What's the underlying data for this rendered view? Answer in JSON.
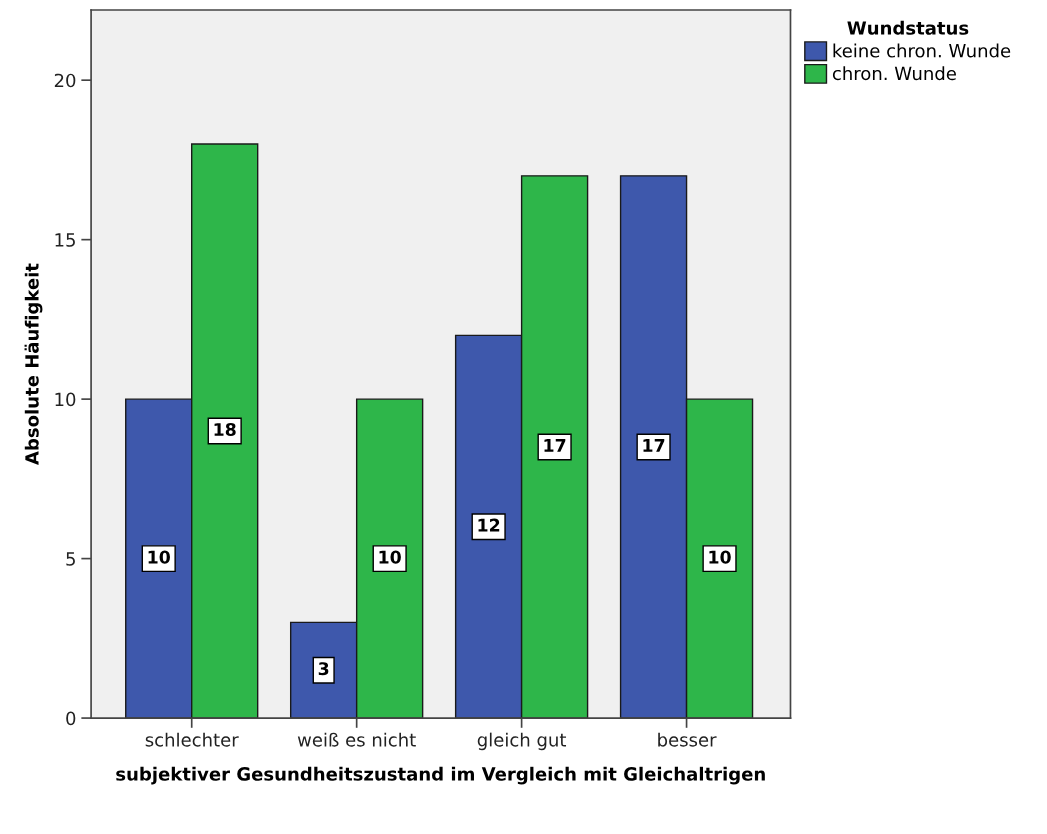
{
  "chart_data": {
    "type": "bar",
    "xlabel": "subjektiver Gesundheitszustand im Vergleich mit Gleichaltrigen",
    "ylabel": "Absolute Häufigkeit",
    "legend_title": "Wundstatus",
    "categories": [
      "schlechter",
      "weiß es nicht",
      "gleich gut",
      "besser"
    ],
    "series": [
      {
        "name": "keine chron. Wunde",
        "color": "#3e58ac",
        "values": [
          10,
          3,
          12,
          17
        ]
      },
      {
        "name": "chron. Wunde",
        "color": "#2eb64a",
        "values": [
          18,
          10,
          17,
          10
        ]
      }
    ],
    "ylim": [
      0,
      22.2
    ],
    "yticks": [
      0,
      5,
      10,
      15,
      20
    ],
    "grid": false,
    "legend": "top right",
    "data_labels": true
  }
}
